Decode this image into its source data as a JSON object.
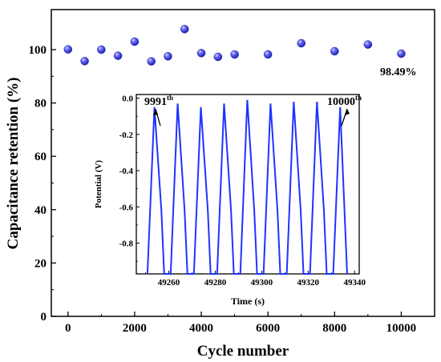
{
  "chart_data": [
    {
      "type": "scatter",
      "title": "",
      "xlabel": "Cycle number",
      "ylabel": "Capacitance retention (%)",
      "xlim": [
        -500,
        11000
      ],
      "ylim": [
        0,
        115
      ],
      "xticks": [
        0,
        2000,
        4000,
        6000,
        8000,
        10000
      ],
      "yticks": [
        0,
        20,
        40,
        60,
        80,
        100
      ],
      "grid": false,
      "legend": "none",
      "marker_color": "#2f2fd8",
      "series": [
        {
          "x": [
            0,
            500,
            1000,
            1500,
            2000,
            2500,
            3000,
            3500,
            4000,
            4500,
            5000,
            6000,
            7000,
            8000,
            9000,
            10000
          ],
          "y": [
            100.1,
            95.7,
            100.0,
            97.7,
            103.0,
            95.6,
            97.5,
            107.7,
            98.7,
            97.3,
            98.2,
            98.2,
            102.4,
            99.4,
            101.9,
            98.49
          ]
        }
      ],
      "annotations": [
        {
          "text": "98.49%",
          "x": 10000,
          "y": 98.49
        }
      ]
    },
    {
      "type": "line",
      "title": "",
      "xlabel": "Time (s)",
      "ylabel": "Potential (V)",
      "xlim": [
        49246,
        49342
      ],
      "ylim": [
        -0.97,
        0.02
      ],
      "xticks": [
        49260,
        49280,
        49300,
        49320,
        49340
      ],
      "yticks": [
        0.0,
        -0.2,
        -0.4,
        -0.6,
        -0.8
      ],
      "grid": false,
      "legend": "none",
      "line_color": "#1f33ff",
      "series": [
        {
          "x": [
            49250.8,
            49253.8,
            49256.8,
            49258.0,
            49260.8,
            49263.8,
            49266.8,
            49268.0,
            49270.8,
            49273.8,
            49276.8,
            49278.0,
            49280.8,
            49283.8,
            49286.8,
            49288.0,
            49290.8,
            49293.8,
            49296.8,
            49298.0,
            49300.8,
            49303.8,
            49306.8,
            49308.0,
            49310.8,
            49313.8,
            49316.8,
            49318.0,
            49320.8,
            49323.8,
            49326.8,
            49328.0,
            49330.8,
            49333.8,
            49336.8
          ],
          "y": [
            -0.97,
            -0.05,
            -0.62,
            -0.97,
            -0.97,
            -0.03,
            -0.62,
            -0.97,
            -0.97,
            -0.05,
            -0.62,
            -0.97,
            -0.97,
            -0.03,
            -0.62,
            -0.97,
            -0.97,
            -0.01,
            -0.62,
            -0.97,
            -0.97,
            -0.03,
            -0.62,
            -0.97,
            -0.97,
            -0.02,
            -0.62,
            -0.97,
            -0.97,
            -0.02,
            -0.62,
            -0.97,
            -0.97,
            -0.05,
            -0.97
          ]
        }
      ],
      "annotations": [
        {
          "base": "9991",
          "sup": "th"
        },
        {
          "base": "10000",
          "sup": "th"
        }
      ]
    }
  ]
}
